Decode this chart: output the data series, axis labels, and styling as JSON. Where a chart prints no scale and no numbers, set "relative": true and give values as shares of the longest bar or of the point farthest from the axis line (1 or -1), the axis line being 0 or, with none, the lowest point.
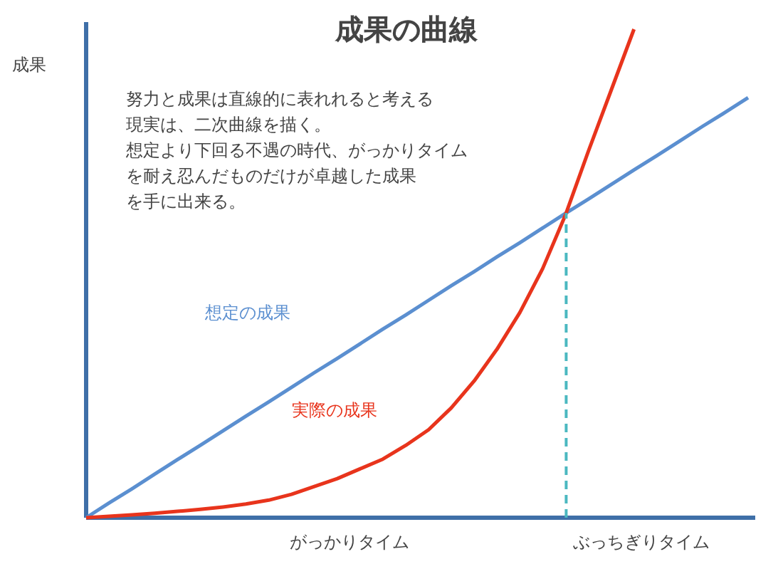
{
  "chart_data": {
    "type": "line",
    "title": "成果の曲線",
    "ylabel": "成果",
    "relative": true,
    "marker": "none",
    "categories": [
      null,
      null,
      null,
      null,
      null,
      null,
      null,
      null,
      null,
      null,
      null,
      null,
      null,
      null,
      null,
      null,
      null,
      null,
      null,
      null,
      null,
      null,
      null,
      null,
      null,
      null,
      null,
      null,
      null,
      null
    ],
    "series": [
      {
        "name": "想定の成果",
        "color": "#5b8fd0",
        "values": [
          0,
          0.03,
          0.059,
          0.089,
          0.119,
          0.148,
          0.178,
          0.208,
          0.237,
          0.267,
          0.297,
          0.326,
          0.356,
          0.386,
          0.415,
          0.445,
          0.475,
          0.504,
          0.534,
          0.563,
          0.593,
          0.623,
          0.652,
          0.682,
          0.712,
          0.741,
          0.771,
          0.801,
          0.83,
          0.86
        ]
      },
      {
        "name": "実際の成果",
        "color": "#e8341c",
        "values": [
          0,
          0.003,
          0.006,
          0.009,
          0.013,
          0.017,
          0.022,
          0.028,
          0.036,
          0.048,
          0.064,
          0.08,
          0.1,
          0.12,
          0.148,
          0.18,
          0.225,
          0.28,
          0.345,
          0.42,
          0.51,
          0.62,
          0.75,
          0.875,
          1.0,
          null,
          null,
          null,
          null,
          null
        ]
      }
    ],
    "annotations": [
      "努力と成果は直線的に表れれると考える",
      "現実は、二次曲線を描く。",
      "想定より下回る不遇の時代、がっかりタイム",
      "を耐え忍んだものだけが卓越した成果",
      "を手に出来る。",
      "がっかりタイム",
      "ぶっちぎりタイム"
    ]
  }
}
